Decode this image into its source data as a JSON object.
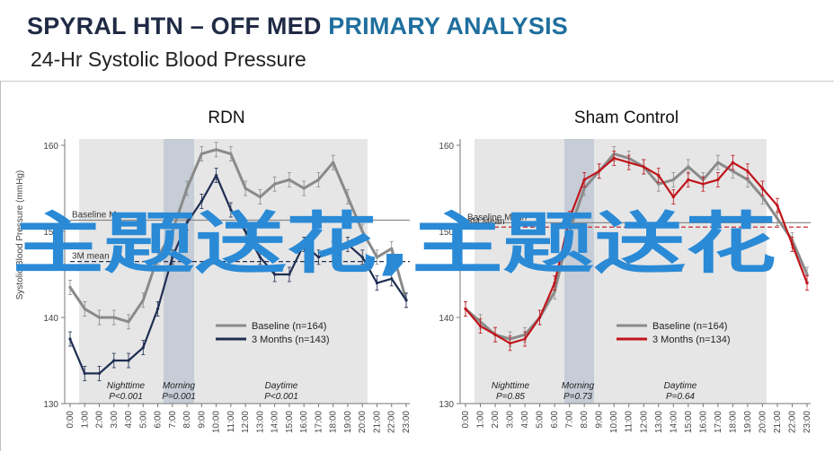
{
  "header": {
    "title_main": "SPYRAL HTN – OFF MED",
    "title_accent": "PRIMARY ANALYSIS",
    "subtitle": "24-Hr Systolic Blood Pressure"
  },
  "watermark": "主题送花,主题送花",
  "colors": {
    "baseline": "#8a8a8a",
    "rdn_3m": "#1f2e52",
    "sham_3m": "#c0141b",
    "night_band": "#e6e6e6",
    "morning_band": "#c6cdd6",
    "day_band": "#e6e6e6"
  },
  "chart_data": [
    {
      "type": "line",
      "title": "RDN",
      "ylabel": "Systolic Blood Pressure (mmHg)",
      "ylim": [
        130,
        160
      ],
      "yticks": [
        130,
        140,
        150,
        160
      ],
      "categories": [
        "0:00",
        "1:00",
        "2:00",
        "3:00",
        "4:00",
        "5:00",
        "6:00",
        "7:00",
        "8:00",
        "9:00",
        "10:00",
        "11:00",
        "12:00",
        "13:00",
        "14:00",
        "15:00",
        "16:00",
        "17:00",
        "18:00",
        "19:00",
        "20:00",
        "21:00",
        "22:00",
        "23:00"
      ],
      "legend": "bottom-right",
      "series": [
        {
          "name": "Baseline (n=164)",
          "color": "#8a8a8a",
          "values": [
            143.5,
            141,
            140,
            140,
            139.5,
            142,
            147,
            150,
            155,
            159,
            159.5,
            159,
            155,
            154,
            155.5,
            156,
            155,
            156,
            158,
            154,
            150,
            147,
            148,
            142
          ]
        },
        {
          "name": "3 Months (n=143)",
          "color": "#1f2e52",
          "values": [
            137.5,
            133.5,
            133.5,
            135,
            135,
            136.5,
            141,
            147,
            151,
            153.5,
            156.5,
            152.5,
            150,
            147,
            145,
            145,
            148.5,
            147,
            148,
            148.5,
            147,
            144,
            144.5,
            142
          ]
        }
      ],
      "reference_lines": [
        {
          "label": "Baseline Mean",
          "value": 151.3
        },
        {
          "label": "3M mean",
          "value": 146.5
        }
      ],
      "bands": [
        {
          "label": "Nighttime",
          "p": "P<0.001"
        },
        {
          "label": "Morning",
          "p": "P=0.001"
        },
        {
          "label": "Daytime",
          "p": "P<0.001"
        }
      ]
    },
    {
      "type": "line",
      "title": "Sham Control",
      "ylim": [
        130,
        160
      ],
      "yticks": [
        130,
        140,
        150,
        160
      ],
      "categories": [
        "0:00",
        "1:00",
        "2:00",
        "3:00",
        "4:00",
        "5:00",
        "6:00",
        "7:00",
        "8:00",
        "9:00",
        "10:00",
        "11:00",
        "12:00",
        "13:00",
        "14:00",
        "15:00",
        "16:00",
        "17:00",
        "18:00",
        "19:00",
        "20:00",
        "21:00",
        "22:00",
        "23:00"
      ],
      "legend": "bottom-right",
      "series": [
        {
          "name": "Baseline (n=164)",
          "color": "#8a8a8a",
          "values": [
            141,
            139.5,
            138,
            137.5,
            138,
            140,
            143,
            150,
            155,
            157,
            159,
            158.5,
            157.5,
            155.5,
            156,
            157.5,
            156,
            158,
            157,
            156,
            154,
            151.5,
            149,
            145
          ]
        },
        {
          "name": "3 Months (n=134)",
          "color": "#c0141b",
          "values": [
            141,
            139,
            138,
            137,
            137.5,
            140,
            144,
            151.5,
            156,
            157,
            158.5,
            158,
            157.5,
            156.5,
            154,
            156,
            155.5,
            156,
            158,
            157,
            155,
            153,
            148.5,
            144
          ]
        }
      ],
      "reference_lines": [
        {
          "label": "Baseline Mean",
          "value": 151.0
        },
        {
          "label": "3M Mean",
          "value": 150.5
        }
      ],
      "bands": [
        {
          "label": "Nighttime",
          "p": "P=0.85"
        },
        {
          "label": "Morning",
          "p": "P=0.73"
        },
        {
          "label": "Daytime",
          "p": "P=0.64"
        }
      ]
    }
  ]
}
